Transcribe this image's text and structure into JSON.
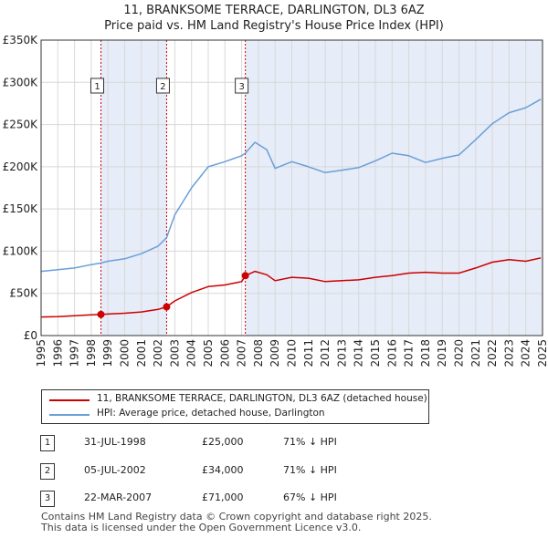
{
  "title_line1": "11, BRANKSOME TERRACE, DARLINGTON, DL3 6AZ",
  "title_line2": "Price paid vs. HM Land Registry's House Price Index (HPI)",
  "colors": {
    "property": "#cc0000",
    "hpi": "#6a9fd8",
    "shade": "#e6ecf8",
    "grid": "#d8d8d8"
  },
  "legend": {
    "property_label": "11, BRANKSOME TERRACE, DARLINGTON, DL3 6AZ (detached house)",
    "hpi_label": "HPI: Average price, detached house, Darlington"
  },
  "sales": [
    {
      "num": "1",
      "date": "31-JUL-1998",
      "price": "£25,000",
      "hpi": "71% ↓ HPI"
    },
    {
      "num": "2",
      "date": "05-JUL-2002",
      "price": "£34,000",
      "hpi": "71% ↓ HPI"
    },
    {
      "num": "3",
      "date": "22-MAR-2007",
      "price": "£71,000",
      "hpi": "67% ↓ HPI"
    }
  ],
  "footer": {
    "line1": "Contains HM Land Registry data © Crown copyright and database right 2025.",
    "line2": "This data is licensed under the Open Government Licence v3.0."
  },
  "chart_data": {
    "type": "line",
    "xlim": [
      1995,
      2025
    ],
    "ylim": [
      0,
      350000
    ],
    "y_ticks": [
      0,
      50000,
      100000,
      150000,
      200000,
      250000,
      300000,
      350000
    ],
    "y_tick_labels": [
      "£0",
      "£50K",
      "£100K",
      "£150K",
      "£200K",
      "£250K",
      "£300K",
      "£350K"
    ],
    "x_ticks": [
      "1995",
      "1996",
      "1997",
      "1998",
      "1999",
      "2000",
      "2001",
      "2002",
      "2003",
      "2004",
      "2005",
      "2006",
      "2007",
      "2008",
      "2009",
      "2010",
      "2011",
      "2012",
      "2013",
      "2014",
      "2015",
      "2016",
      "2017",
      "2018",
      "2019",
      "2020",
      "2021",
      "2022",
      "2023",
      "2024",
      "2025"
    ],
    "grid": true,
    "sale_markers": [
      {
        "label": "1",
        "x": 1998.58,
        "y": 25000
      },
      {
        "label": "2",
        "x": 2002.51,
        "y": 34000
      },
      {
        "label": "3",
        "x": 2007.22,
        "y": 71000
      }
    ],
    "series": [
      {
        "name": "11, BRANKSOME TERRACE, DARLINGTON, DL3 6AZ (detached house)",
        "x": [
          1995,
          1996,
          1997,
          1998,
          1998.58,
          1999,
          2000,
          2001,
          2002,
          2002.51,
          2003,
          2004,
          2005,
          2006,
          2007,
          2007.22,
          2007.8,
          2008.5,
          2009,
          2010,
          2011,
          2012,
          2013,
          2014,
          2015,
          2016,
          2017,
          2018,
          2019,
          2020,
          2021,
          2022,
          2023,
          2024,
          2024.9
        ],
        "values": [
          22000,
          22500,
          23500,
          24500,
          25000,
          25500,
          26500,
          28000,
          31000,
          34000,
          41000,
          51000,
          58000,
          60000,
          64000,
          71000,
          76000,
          72000,
          65000,
          69000,
          68000,
          64000,
          65000,
          66000,
          69000,
          71000,
          74000,
          75000,
          74000,
          74000,
          80000,
          87000,
          90000,
          88000,
          92000
        ]
      },
      {
        "name": "HPI: Average price, detached house, Darlington",
        "x": [
          1995,
          1996,
          1997,
          1998,
          1998.58,
          1999,
          2000,
          2001,
          2002,
          2002.51,
          2003,
          2004,
          2005,
          2006,
          2007,
          2007.22,
          2007.8,
          2008.5,
          2009,
          2010,
          2011,
          2012,
          2013,
          2014,
          2015,
          2016,
          2017,
          2018,
          2019,
          2020,
          2021,
          2022,
          2023,
          2024,
          2024.9
        ],
        "values": [
          76000,
          78000,
          80000,
          84000,
          86000,
          88000,
          91000,
          97000,
          106000,
          116000,
          143000,
          175000,
          200000,
          206000,
          213000,
          216000,
          229000,
          220000,
          198000,
          206000,
          200000,
          193000,
          196000,
          199000,
          207000,
          216000,
          213000,
          205000,
          210000,
          214000,
          232000,
          251000,
          264000,
          270000,
          280000
        ]
      }
    ]
  }
}
